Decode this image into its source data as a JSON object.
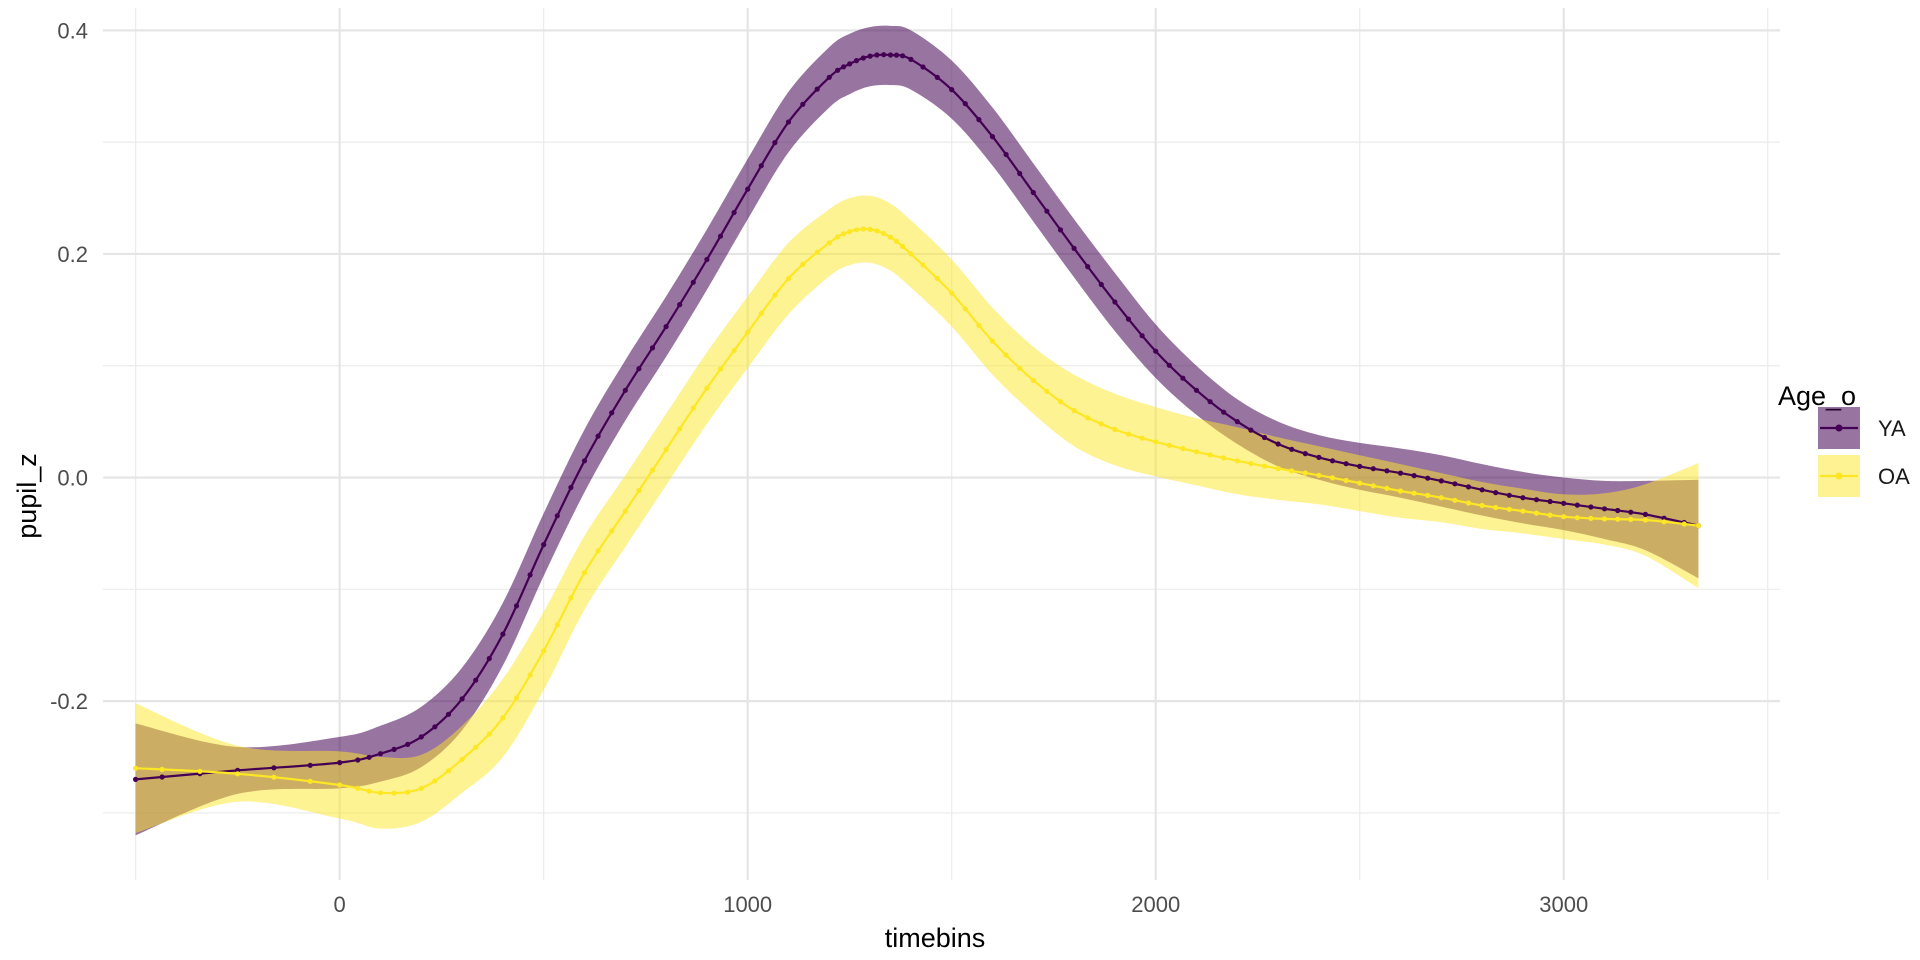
{
  "chart_data": {
    "type": "line",
    "title": "",
    "xlabel": "timebins",
    "ylabel": "pupil_z",
    "xlim": [
      -580,
      3530
    ],
    "ylim": [
      -0.36,
      0.42
    ],
    "x_ticks": [
      0,
      1000,
      2000,
      3000
    ],
    "x_tick_labels": [
      "0",
      "1000",
      "2000",
      "3000"
    ],
    "y_ticks": [
      -0.2,
      0.0,
      0.2,
      0.4
    ],
    "y_tick_labels": [
      "-0.2",
      "0.0",
      "0.2",
      "0.4"
    ],
    "grid": true,
    "legend": {
      "title": "Age_o",
      "position": "right"
    },
    "x": [
      -500,
      -250,
      0,
      100,
      200,
      300,
      400,
      500,
      600,
      700,
      800,
      900,
      1000,
      1100,
      1200,
      1250,
      1300,
      1350,
      1400,
      1500,
      1600,
      1700,
      1800,
      1900,
      2000,
      2100,
      2200,
      2300,
      2400,
      2500,
      2600,
      2700,
      2800,
      2900,
      3000,
      3100,
      3200,
      3330
    ],
    "series": [
      {
        "name": "YA",
        "color": "#440154",
        "band_color": "#440154",
        "values": [
          -0.27,
          -0.262,
          -0.255,
          -0.247,
          -0.232,
          -0.198,
          -0.14,
          -0.06,
          0.015,
          0.078,
          0.135,
          0.195,
          0.258,
          0.318,
          0.358,
          0.37,
          0.377,
          0.378,
          0.374,
          0.347,
          0.305,
          0.255,
          0.205,
          0.157,
          0.113,
          0.078,
          0.05,
          0.03,
          0.018,
          0.01,
          0.004,
          -0.003,
          -0.011,
          -0.018,
          -0.023,
          -0.028,
          -0.033,
          -0.043
        ],
        "band_upper": [
          -0.22,
          -0.241,
          -0.232,
          -0.222,
          -0.205,
          -0.17,
          -0.112,
          -0.032,
          0.043,
          0.105,
          0.162,
          0.222,
          0.285,
          0.345,
          0.385,
          0.397,
          0.403,
          0.404,
          0.4,
          0.373,
          0.331,
          0.281,
          0.231,
          0.183,
          0.137,
          0.1,
          0.07,
          0.05,
          0.038,
          0.031,
          0.026,
          0.02,
          0.012,
          0.005,
          0.0,
          -0.003,
          -0.003,
          -0.002
        ],
        "band_lower": [
          -0.32,
          -0.283,
          -0.278,
          -0.272,
          -0.259,
          -0.226,
          -0.168,
          -0.088,
          -0.013,
          0.051,
          0.108,
          0.168,
          0.231,
          0.291,
          0.331,
          0.343,
          0.35,
          0.351,
          0.347,
          0.321,
          0.279,
          0.229,
          0.179,
          0.131,
          0.089,
          0.056,
          0.03,
          0.01,
          -0.002,
          -0.011,
          -0.018,
          -0.026,
          -0.034,
          -0.041,
          -0.047,
          -0.055,
          -0.065,
          -0.09
        ]
      },
      {
        "name": "OA",
        "color": "#fde725",
        "band_color": "#fde725",
        "values": [
          -0.26,
          -0.265,
          -0.275,
          -0.282,
          -0.278,
          -0.252,
          -0.215,
          -0.155,
          -0.085,
          -0.03,
          0.025,
          0.08,
          0.13,
          0.178,
          0.21,
          0.22,
          0.222,
          0.215,
          0.2,
          0.165,
          0.122,
          0.087,
          0.06,
          0.043,
          0.032,
          0.023,
          0.015,
          0.008,
          0.002,
          -0.005,
          -0.012,
          -0.018,
          -0.025,
          -0.03,
          -0.035,
          -0.037,
          -0.038,
          -0.043
        ],
        "band_upper": [
          -0.202,
          -0.24,
          -0.245,
          -0.25,
          -0.248,
          -0.222,
          -0.18,
          -0.12,
          -0.052,
          0.002,
          0.057,
          0.112,
          0.162,
          0.21,
          0.24,
          0.25,
          0.252,
          0.245,
          0.23,
          0.195,
          0.152,
          0.117,
          0.092,
          0.075,
          0.063,
          0.053,
          0.045,
          0.036,
          0.028,
          0.02,
          0.012,
          0.004,
          -0.004,
          -0.01,
          -0.015,
          -0.014,
          -0.006,
          0.013
        ],
        "band_lower": [
          -0.318,
          -0.29,
          -0.305,
          -0.314,
          -0.308,
          -0.282,
          -0.25,
          -0.19,
          -0.118,
          -0.062,
          -0.007,
          0.048,
          0.098,
          0.146,
          0.18,
          0.19,
          0.192,
          0.185,
          0.17,
          0.135,
          0.092,
          0.057,
          0.028,
          0.011,
          0.001,
          -0.007,
          -0.015,
          -0.02,
          -0.024,
          -0.03,
          -0.036,
          -0.04,
          -0.046,
          -0.05,
          -0.055,
          -0.06,
          -0.07,
          -0.099
        ]
      }
    ]
  }
}
